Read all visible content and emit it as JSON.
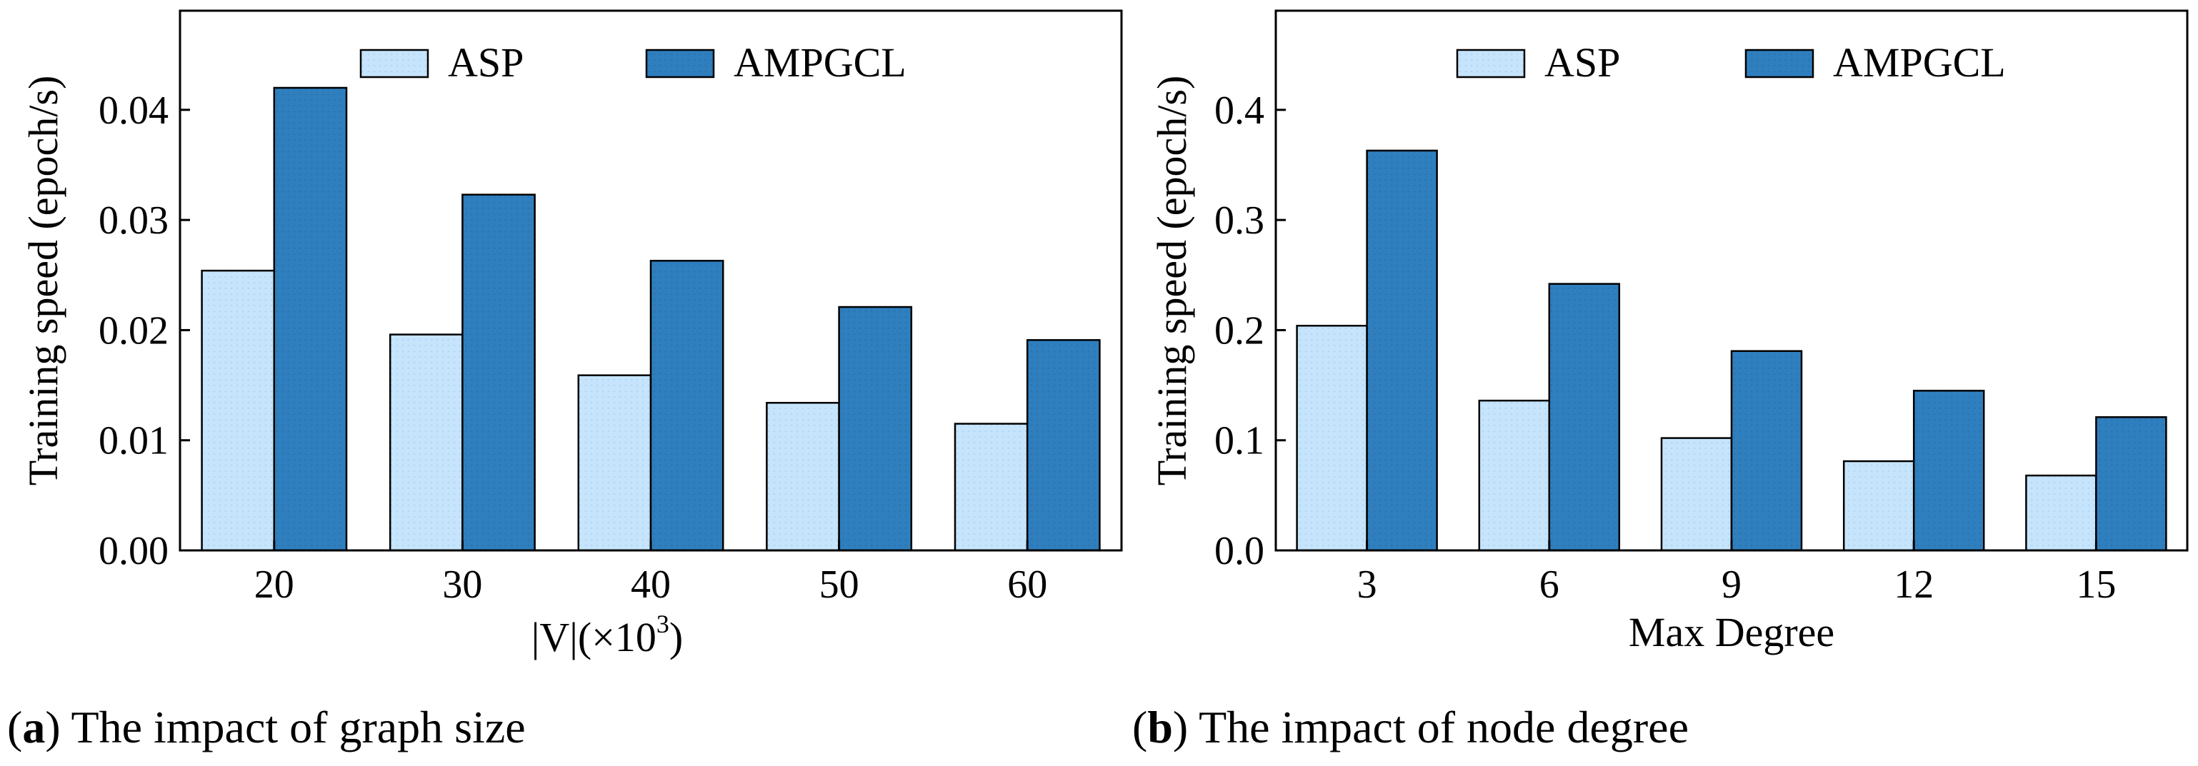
{
  "chart_data": [
    {
      "type": "bar",
      "panel": "a",
      "caption_letter": "a",
      "caption_text": "The impact of graph size",
      "categories": [
        "20",
        "30",
        "40",
        "50",
        "60"
      ],
      "series": [
        {
          "name": "ASP",
          "values": [
            0.0254,
            0.0196,
            0.0159,
            0.0134,
            0.0115
          ],
          "color": "#c6e4fb"
        },
        {
          "name": "AMPGCL",
          "values": [
            0.042,
            0.0323,
            0.0263,
            0.0221,
            0.0191
          ],
          "color": "#2f7fbf"
        }
      ],
      "xlabel_main": "|V|(×10",
      "xlabel_sup": "3",
      "xlabel_end": ")",
      "ylabel": "Training speed (epoch/s)",
      "ylim": [
        0,
        0.049
      ],
      "yticks": [
        "0.00",
        "0.01",
        "0.02",
        "0.03",
        "0.04"
      ],
      "ytick_values": [
        0,
        0.01,
        0.02,
        0.03,
        0.04
      ],
      "legend_position": "top-center",
      "grid": false
    },
    {
      "type": "bar",
      "panel": "b",
      "caption_letter": "b",
      "caption_text": "The impact of node degree",
      "categories": [
        "3",
        "6",
        "9",
        "12",
        "15"
      ],
      "series": [
        {
          "name": "ASP",
          "values": [
            0.204,
            0.136,
            0.102,
            0.081,
            0.068
          ],
          "color": "#c6e4fb"
        },
        {
          "name": "AMPGCL",
          "values": [
            0.363,
            0.242,
            0.181,
            0.145,
            0.121
          ],
          "color": "#2f7fbf"
        }
      ],
      "xlabel": "Max Degree",
      "ylabel": "Training speed (epoch/s)",
      "ylim": [
        0,
        0.49
      ],
      "yticks": [
        "0.0",
        "0.1",
        "0.2",
        "0.3",
        "0.4"
      ],
      "ytick_values": [
        0,
        0.1,
        0.2,
        0.3,
        0.4
      ],
      "legend_position": "top-center",
      "grid": false
    }
  ]
}
